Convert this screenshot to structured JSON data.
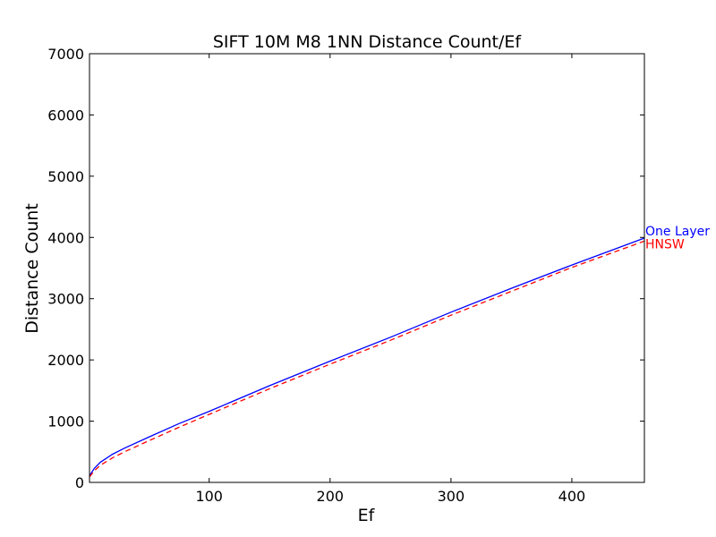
{
  "chart_data": {
    "type": "line",
    "title": "SIFT 10M M8 1NN Distance Count/Ef",
    "xlabel": "Ef",
    "ylabel": "Distance Count",
    "xlim": [
      1,
      460
    ],
    "ylim": [
      0,
      7000
    ],
    "x_ticks": [
      100,
      200,
      300,
      400
    ],
    "y_ticks": [
      0,
      1000,
      2000,
      3000,
      4000,
      5000,
      6000,
      7000
    ],
    "grid": false,
    "legend": "inline labels at right end of lines",
    "series": [
      {
        "name": "One Layer",
        "color": "#0000ff",
        "dash": "solid",
        "x": [
          1,
          5,
          10,
          20,
          30,
          50,
          75,
          100,
          150,
          200,
          250,
          300,
          350,
          400,
          460
        ],
        "y": [
          110,
          230,
          330,
          460,
          560,
          740,
          960,
          1160,
          1580,
          1980,
          2370,
          2780,
          3170,
          3550,
          3990
        ]
      },
      {
        "name": "HNSW",
        "color": "#ff0000",
        "dash": "dashed",
        "x": [
          1,
          5,
          10,
          20,
          30,
          50,
          75,
          100,
          150,
          200,
          250,
          300,
          350,
          400,
          460
        ],
        "y": [
          90,
          190,
          280,
          400,
          500,
          680,
          900,
          1110,
          1530,
          1930,
          2320,
          2730,
          3120,
          3510,
          3940
        ]
      }
    ]
  }
}
